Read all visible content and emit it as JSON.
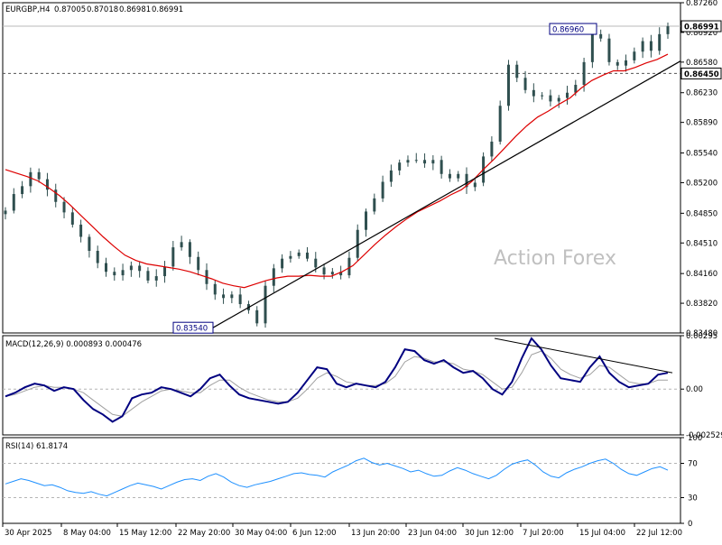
{
  "chart_data": [
    {
      "panel": "price",
      "type": "candlestick",
      "title": "EURGBP,H4",
      "ohlc": [
        "0.87005",
        "0.87018",
        "0.86981",
        "0.86991"
      ],
      "current_price": 0.86991,
      "watermark": "Action Forex",
      "ylim": [
        0.8348,
        0.8726
      ],
      "yticks": [
        "0.87260",
        "0.86920",
        "0.86580",
        "0.86230",
        "0.85890",
        "0.85540",
        "0.85200",
        "0.84850",
        "0.84510",
        "0.84160",
        "0.83820",
        "0.83480"
      ],
      "highlighted_levels": [
        "0.86991",
        "0.86450"
      ],
      "annotations": [
        {
          "label": "0.86960",
          "value": 0.8696
        },
        {
          "label": "0.83540",
          "value": 0.8354
        }
      ],
      "close_series": [
        0.8488,
        0.8507,
        0.8516,
        0.8532,
        0.8524,
        0.8512,
        0.8498,
        0.8486,
        0.8472,
        0.8458,
        0.8442,
        0.8428,
        0.8418,
        0.8414,
        0.842,
        0.8425,
        0.8419,
        0.8408,
        0.8413,
        0.8424,
        0.8446,
        0.8452,
        0.8435,
        0.842,
        0.8404,
        0.8392,
        0.8388,
        0.8392,
        0.8381,
        0.8374,
        0.8359,
        0.8402,
        0.8422,
        0.8433,
        0.8436,
        0.844,
        0.8433,
        0.8423,
        0.8415,
        0.8418,
        0.8414,
        0.8434,
        0.8466,
        0.8487,
        0.8502,
        0.8521,
        0.8534,
        0.8543,
        0.8546,
        0.8546,
        0.8542,
        0.8546,
        0.853,
        0.8525,
        0.853,
        0.8515,
        0.852,
        0.855,
        0.8567,
        0.8608,
        0.8655,
        0.864,
        0.8626,
        0.8619,
        0.862,
        0.8613,
        0.8617,
        0.8623,
        0.8632,
        0.8658,
        0.869,
        0.8685,
        0.8658,
        0.8654,
        0.866,
        0.867,
        0.8682,
        0.8671,
        0.869,
        0.8699
      ],
      "moving_average_series": [
        0.8535,
        0.8531,
        0.8527,
        0.8522,
        0.8514,
        0.8505,
        0.8494,
        0.8482,
        0.847,
        0.8458,
        0.8447,
        0.8437,
        0.8431,
        0.8427,
        0.8425,
        0.8423,
        0.8421,
        0.8418,
        0.8414,
        0.841,
        0.8405,
        0.8402,
        0.84,
        0.8404,
        0.8408,
        0.8411,
        0.8413,
        0.8413,
        0.8414,
        0.8413,
        0.8413,
        0.8418,
        0.8425,
        0.8437,
        0.8449,
        0.846,
        0.847,
        0.8479,
        0.8487,
        0.8493,
        0.8499,
        0.8506,
        0.8512,
        0.8522,
        0.8535,
        0.8547,
        0.856,
        0.8573,
        0.8585,
        0.8595,
        0.8602,
        0.861,
        0.8617,
        0.8628,
        0.8637,
        0.8643,
        0.8648,
        0.8648,
        0.8652,
        0.8657,
        0.8661,
        0.8667
      ],
      "trendline": {
        "from_value": 0.8354,
        "to_value": 0.8653
      }
    },
    {
      "panel": "macd",
      "type": "line",
      "title": "MACD(12,26,9) 0.000893 0.000476",
      "ylim": [
        -0.002529,
        0.00295
      ],
      "yticks": [
        "0.00295",
        "0.00",
        "-0.002529"
      ],
      "series": [
        {
          "values": [
            -0.0004,
            -0.0002,
            0.0001,
            0.0003,
            0.0002,
            -0.0001,
            0.0001,
            0.0,
            -0.0006,
            -0.0011,
            -0.0014,
            -0.0018,
            -0.0015,
            -0.0005,
            -0.0003,
            -0.0002,
            0.0001,
            0.0,
            -0.0002,
            -0.0004,
            0.0,
            0.0006,
            0.0008,
            0.0002,
            -0.0003,
            -0.0005,
            -0.0006,
            -0.0007,
            -0.0008,
            -0.0007,
            -0.0002,
            0.0005,
            0.0012,
            0.0011,
            0.0003,
            0.0001,
            0.0003,
            0.0002,
            0.0001,
            0.0004,
            0.0012,
            0.0022,
            0.0021,
            0.0016,
            0.0014,
            0.0016,
            0.0012,
            0.0009,
            0.001,
            0.0006,
            0.0,
            -0.0003,
            0.0004,
            0.0017,
            0.0028,
            0.0022,
            0.0013,
            0.0006,
            0.0005,
            0.0004,
            0.0012,
            0.0018,
            0.0009,
            0.0004,
            0.0001,
            0.0002,
            0.0003,
            0.0008,
            0.0009
          ]
        },
        {
          "values": [
            -0.0004,
            -0.0003,
            -0.0001,
            0.0001,
            0.0002,
            0.0001,
            0.0001,
            0.0,
            -0.0002,
            -0.0006,
            -0.001,
            -0.0014,
            -0.0015,
            -0.0011,
            -0.0007,
            -0.0004,
            -0.0001,
            0.0,
            -0.0001,
            -0.0002,
            -0.0002,
            0.0002,
            0.0005,
            0.0005,
            0.0001,
            -0.0002,
            -0.0004,
            -0.0006,
            -0.0007,
            -0.0007,
            -0.0005,
            0.0,
            0.0006,
            0.0009,
            0.0007,
            0.0004,
            0.0003,
            0.0002,
            0.0002,
            0.0003,
            0.0007,
            0.0015,
            0.0018,
            0.0017,
            0.0015,
            0.0015,
            0.0014,
            0.0011,
            0.001,
            0.0008,
            0.0004,
            0.0,
            0.0001,
            0.0009,
            0.0019,
            0.0021,
            0.0017,
            0.0011,
            0.0008,
            0.0006,
            0.0008,
            0.0013,
            0.0012,
            0.0008,
            0.0004,
            0.0003,
            0.0003,
            0.0005,
            0.0005
          ]
        }
      ],
      "trendline": {
        "from_value": 0.0028,
        "to_value": 0.0009
      }
    },
    {
      "panel": "rsi",
      "type": "line",
      "title": "RSI(14) 61.8174",
      "ylim": [
        0,
        100
      ],
      "yticks": [
        "100",
        "70",
        "30",
        "0"
      ],
      "levels": [
        70,
        30
      ],
      "series": [
        {
          "values": [
            46,
            49,
            52,
            50,
            47,
            44,
            45,
            42,
            38,
            36,
            35,
            37,
            34,
            32,
            36,
            40,
            44,
            47,
            45,
            43,
            40,
            44,
            48,
            51,
            52,
            50,
            55,
            58,
            54,
            48,
            44,
            42,
            45,
            47,
            49,
            52,
            55,
            58,
            59,
            57,
            56,
            54,
            60,
            64,
            68,
            73,
            76,
            71,
            68,
            70,
            67,
            64,
            60,
            62,
            58,
            55,
            56,
            61,
            65,
            62,
            58,
            55,
            52,
            56,
            63,
            69,
            72,
            74,
            68,
            60,
            55,
            53,
            59,
            63,
            66,
            70,
            73,
            75,
            70,
            63,
            58,
            56,
            60,
            64,
            66,
            62
          ]
        }
      ]
    },
    {
      "panel": "x-axis",
      "type": "time-axis",
      "categories": [
        "30 Apr 2025",
        "8 May 04:00",
        "15 May 12:00",
        "22 May 20:00",
        "30 May 04:00",
        "6 Jun 12:00",
        "13 Jun 20:00",
        "23 Jun 04:00",
        "30 Jun 12:00",
        "7 Jul 20:00",
        "15 Jul 04:00",
        "22 Jul 12:00"
      ]
    }
  ],
  "colors": {
    "background": "#ffffff",
    "candle": "#2f4f4f",
    "moving_average": "#dd0000",
    "trendline": "#000000",
    "macd_line": "#000080",
    "macd_signal": "#a0a0a0",
    "rsi_line": "#1e90ff",
    "grid_dashed": "#b4b4b4",
    "axis": "#000000",
    "text": "#000000",
    "label_box_fill": "#ffffff",
    "label_box_text": "#000080",
    "watermark": "#c0c0c0"
  }
}
